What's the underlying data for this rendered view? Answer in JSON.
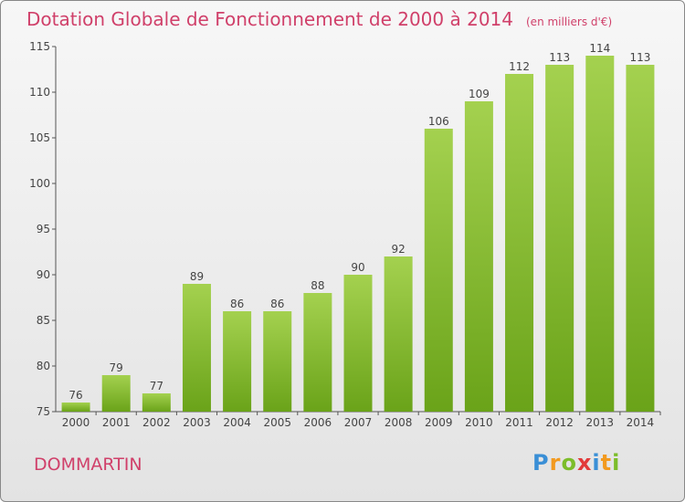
{
  "header": {
    "title": "Dotation Globale de Fonctionnement de 2000 à 2014",
    "unit_note": "(en milliers d'€)"
  },
  "commune": "DOMMARTIN",
  "logo": {
    "text": "Proxiti"
  },
  "colors": {
    "bar_light": "#a4d14f",
    "bar_dark": "#6aa319",
    "title": "#d0406a",
    "axis_text": "#444444"
  },
  "chart_data": {
    "type": "bar",
    "title": "Dotation Globale de Fonctionnement de 2000 à 2014",
    "subtitle": "(en milliers d'€)",
    "xlabel": "",
    "ylabel": "",
    "categories": [
      "2000",
      "2001",
      "2002",
      "2003",
      "2004",
      "2005",
      "2006",
      "2007",
      "2008",
      "2009",
      "2010",
      "2011",
      "2012",
      "2013",
      "2014"
    ],
    "values": [
      76,
      79,
      77,
      89,
      86,
      86,
      88,
      90,
      92,
      106,
      109,
      112,
      113,
      114,
      113
    ],
    "ylim": [
      75,
      115
    ],
    "yticks": [
      75,
      80,
      85,
      90,
      95,
      100,
      105,
      110,
      115
    ],
    "grid": false,
    "data_labels": true
  }
}
